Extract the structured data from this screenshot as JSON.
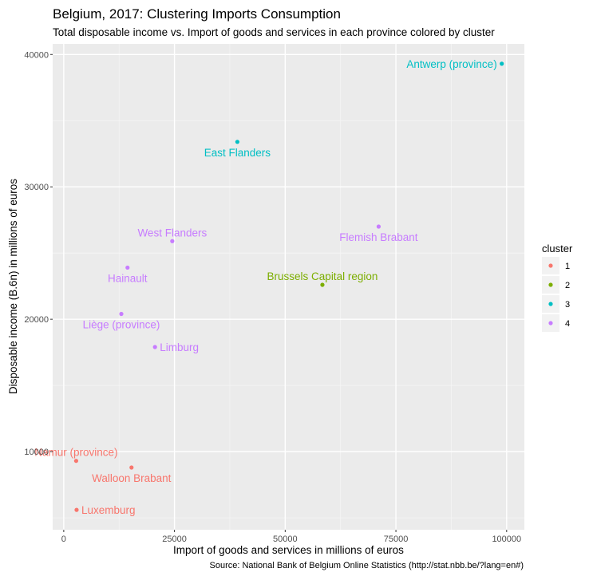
{
  "chart_data": {
    "type": "scatter",
    "title": "Belgium, 2017: Clustering Imports Consumption",
    "subtitle": "Total disposable income vs. Import of goods and services in each province colored by cluster",
    "xlabel": "Import of goods and services in millions of euros",
    "ylabel": "Disposable income (B.6n) in millions of euros",
    "caption": "Source: National Bank of Belgium Online Statistics (http://stat.nbb.be/?lang=en#)",
    "xlim": [
      -2500,
      104000
    ],
    "ylim": [
      4100,
      40800
    ],
    "x_ticks": [
      0,
      25000,
      50000,
      75000,
      100000
    ],
    "x_tick_labels": [
      "0",
      "25000",
      "50000",
      "75000",
      "100000"
    ],
    "y_ticks": [
      10000,
      20000,
      30000,
      40000
    ],
    "y_tick_labels": [
      "10000",
      "20000",
      "30000",
      "40000"
    ],
    "grid": true,
    "legend": {
      "title": "cluster",
      "position": "right",
      "entries": [
        {
          "label": "1",
          "color": "#F8766D"
        },
        {
          "label": "2",
          "color": "#7CAE00"
        },
        {
          "label": "3",
          "color": "#00BFC4"
        },
        {
          "label": "4",
          "color": "#C77CFF"
        }
      ]
    },
    "points": [
      {
        "label": "Antwerp (province)",
        "x": 98900,
        "y": 39300,
        "cluster": "3",
        "label_anchor": "end"
      },
      {
        "label": "East Flanders",
        "x": 39200,
        "y": 33400,
        "cluster": "3",
        "label_anchor": "below"
      },
      {
        "label": "Flemish Brabant",
        "x": 71100,
        "y": 27000,
        "cluster": "4",
        "label_anchor": "below"
      },
      {
        "label": "West Flanders",
        "x": 24500,
        "y": 25900,
        "cluster": "4",
        "label_anchor": "above"
      },
      {
        "label": "Hainault",
        "x": 14400,
        "y": 23900,
        "cluster": "4",
        "label_anchor": "below"
      },
      {
        "label": "Brussels Capital region",
        "x": 58400,
        "y": 22600,
        "cluster": "2",
        "label_anchor": "above"
      },
      {
        "label": "Liège (province)",
        "x": 13000,
        "y": 20400,
        "cluster": "4",
        "label_anchor": "below"
      },
      {
        "label": "Limburg",
        "x": 20600,
        "y": 17900,
        "cluster": "4",
        "label_anchor": "right"
      },
      {
        "label": "Namur (province)",
        "x": 2800,
        "y": 9300,
        "cluster": "1",
        "label_anchor": "above"
      },
      {
        "label": "Walloon Brabant",
        "x": 15300,
        "y": 8800,
        "cluster": "1",
        "label_anchor": "below"
      },
      {
        "label": "Luxemburg",
        "x": 2900,
        "y": 5600,
        "cluster": "1",
        "label_anchor": "right"
      }
    ]
  }
}
